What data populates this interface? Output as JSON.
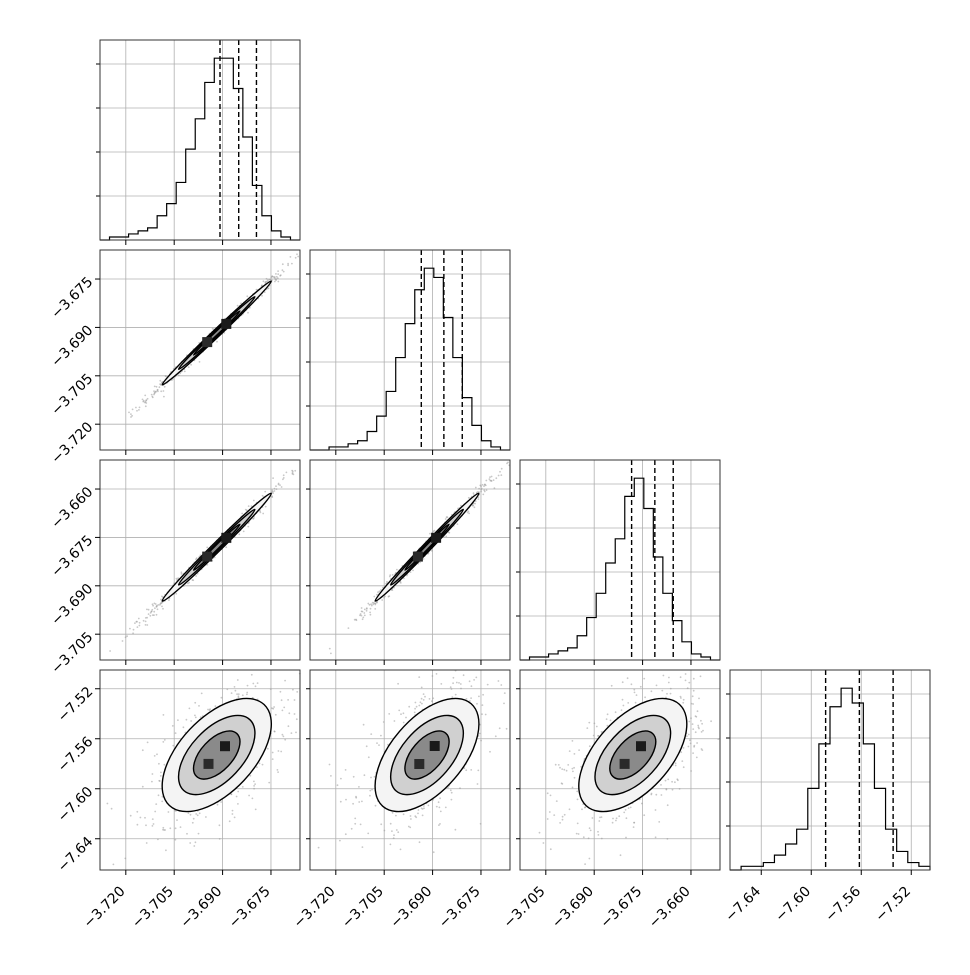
{
  "chart_data": {
    "type": "corner",
    "grid": true,
    "variables": [
      {
        "ticks": [
          -3.72,
          -3.705,
          -3.69,
          -3.675
        ],
        "tick_labels": [
          "−3.720",
          "−3.705",
          "−3.690",
          "−3.675"
        ],
        "range": [
          -3.728,
          -3.666
        ],
        "quantiles": [
          -3.6908,
          -3.685,
          -3.6795
        ],
        "histogram": [
          0,
          1,
          1,
          2,
          3,
          4,
          8,
          12,
          19,
          30,
          40,
          52,
          60,
          60,
          50,
          34,
          18,
          8,
          3,
          1,
          0
        ]
      },
      {
        "ticks": [
          -3.72,
          -3.705,
          -3.69,
          -3.675
        ],
        "tick_labels": [
          "−3.720",
          "−3.705",
          "−3.690",
          "−3.675"
        ],
        "range": [
          -3.728,
          -3.666
        ],
        "quantiles": [
          -3.6935,
          -3.6865,
          -3.6808
        ],
        "histogram": [
          0,
          0,
          1,
          1,
          2,
          3,
          6,
          11,
          19,
          30,
          41,
          52,
          59,
          56,
          43,
          30,
          17,
          8,
          3,
          1,
          0
        ]
      },
      {
        "ticks": [
          -3.705,
          -3.69,
          -3.675,
          -3.66
        ],
        "tick_labels": [
          "−3.705",
          "−3.690",
          "−3.675",
          "−3.660"
        ],
        "range": [
          -3.713,
          -3.651
        ],
        "quantiles": [
          -3.6784,
          -3.6712,
          -3.6655
        ],
        "histogram": [
          0,
          1,
          1,
          2,
          3,
          4,
          8,
          14,
          22,
          32,
          40,
          54,
          60,
          50,
          34,
          22,
          13,
          6,
          2,
          1,
          0
        ]
      },
      {
        "ticks": [
          -7.64,
          -7.6,
          -7.56,
          -7.52
        ],
        "tick_labels": [
          "−7.64",
          "−7.60",
          "−7.56",
          "−7.52"
        ],
        "range": [
          -7.665,
          -7.505
        ],
        "quantiles": [
          -7.5885,
          -7.5615,
          -7.5345
        ],
        "histogram": [
          0,
          1,
          1,
          2,
          4,
          7,
          11,
          22,
          34,
          44,
          49,
          45,
          34,
          22,
          11,
          5,
          2,
          1
        ]
      }
    ],
    "pairs": [
      {
        "row": 1,
        "col": 0,
        "corr": 0.995
      },
      {
        "row": 2,
        "col": 0,
        "corr": 0.993
      },
      {
        "row": 2,
        "col": 1,
        "corr": 0.994
      },
      {
        "row": 3,
        "col": 0,
        "corr": 0.55
      },
      {
        "row": 3,
        "col": 1,
        "corr": 0.55
      },
      {
        "row": 3,
        "col": 2,
        "corr": 0.55
      }
    ]
  }
}
